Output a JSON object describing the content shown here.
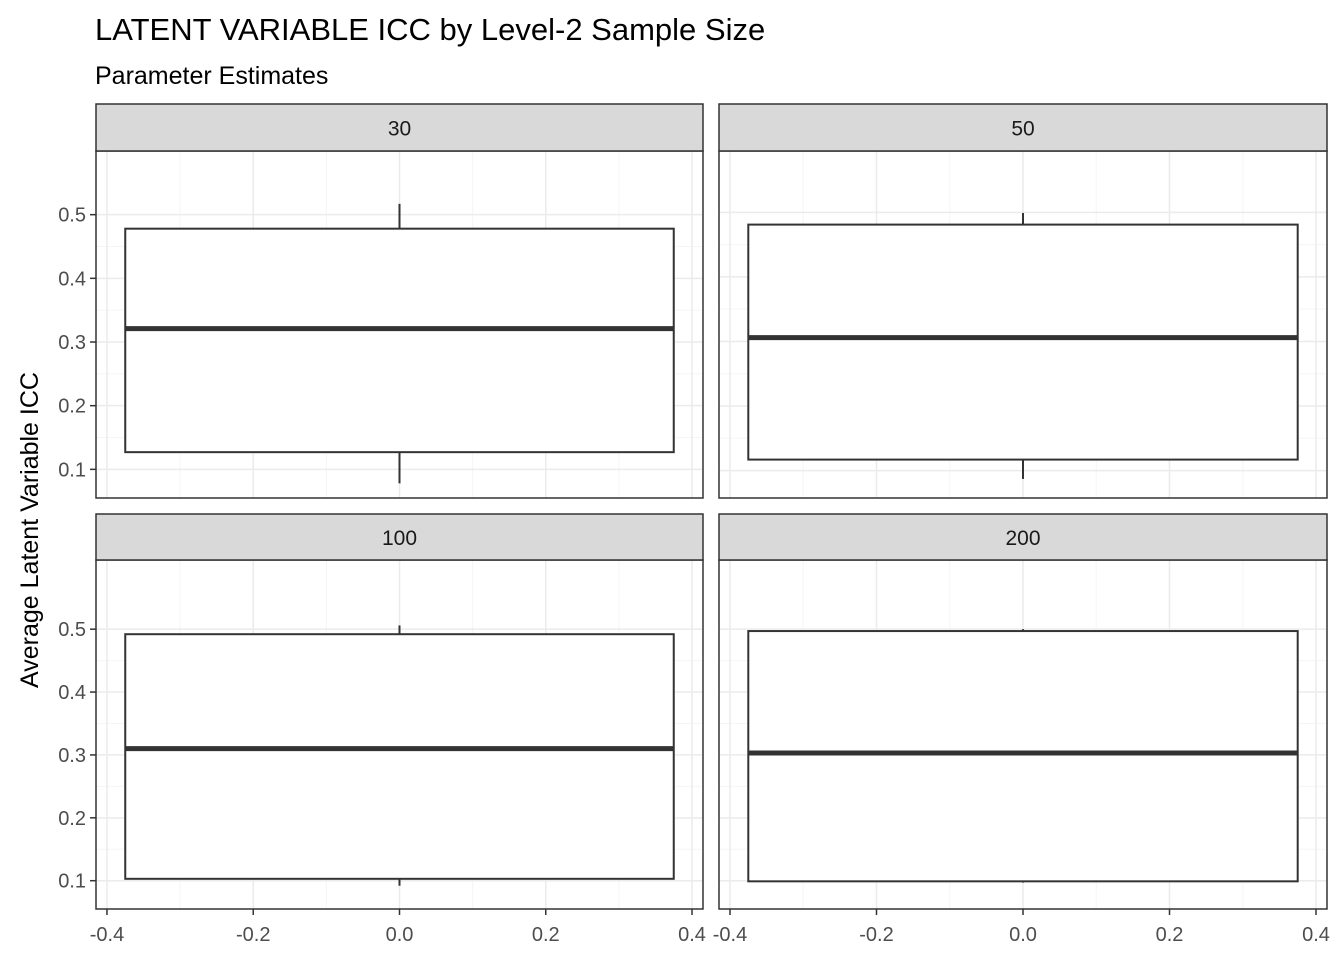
{
  "chart_data": {
    "type": "boxplot",
    "title": "LATENT VARIABLE ICC by Level-2 Sample Size",
    "subtitle": "Parameter Estimates",
    "xlabel": "",
    "ylabel": "Average Latent Variable ICC",
    "facet_layout": {
      "rows": 2,
      "cols": 2
    },
    "x_ticks": [
      -0.4,
      -0.2,
      0.0,
      0.2,
      0.4
    ],
    "x_tick_labels": [
      "-0.4",
      "-0.2",
      "0.0",
      "0.2",
      "0.4"
    ],
    "y_ticks": [
      0.1,
      0.2,
      0.3,
      0.4,
      0.5
    ],
    "y_tick_labels": [
      "0.1",
      "0.2",
      "0.3",
      "0.4",
      "0.5"
    ],
    "grid": true,
    "colors": {
      "strip_fill": "#d9d9d9",
      "panel_border": "#333333",
      "grid_major": "#ebebeb",
      "grid_minor": "#f5f5f5",
      "box_line": "#333333",
      "box_fill": "#ffffff"
    },
    "panels": [
      {
        "label": "30",
        "xlim": [
          -0.415,
          0.415
        ],
        "ylim": [
          0.055,
          0.6
        ],
        "box": {
          "x_left": -0.375,
          "x_right": 0.375,
          "whisker_low": 0.078,
          "q1": 0.127,
          "median": 0.321,
          "q3": 0.478,
          "whisker_high": 0.517
        }
      },
      {
        "label": "50",
        "xlim": [
          -0.415,
          0.415
        ],
        "ylim": [
          0.0575,
          0.595
        ],
        "box": {
          "x_left": -0.375,
          "x_right": 0.375,
          "whisker_low": 0.087,
          "q1": 0.117,
          "median": 0.306,
          "q3": 0.481,
          "whisker_high": 0.499
        }
      },
      {
        "label": "100",
        "xlim": [
          -0.415,
          0.415
        ],
        "ylim": [
          0.055,
          0.61
        ],
        "box": {
          "x_left": -0.375,
          "x_right": 0.375,
          "whisker_low": 0.092,
          "q1": 0.103,
          "median": 0.31,
          "q3": 0.492,
          "whisker_high": 0.506
        }
      },
      {
        "label": "200",
        "xlim": [
          -0.415,
          0.415
        ],
        "ylim": [
          0.055,
          0.61
        ],
        "box": {
          "x_left": -0.375,
          "x_right": 0.375,
          "whisker_low": 0.097,
          "q1": 0.099,
          "median": 0.303,
          "q3": 0.497,
          "whisker_high": 0.5
        }
      }
    ]
  }
}
